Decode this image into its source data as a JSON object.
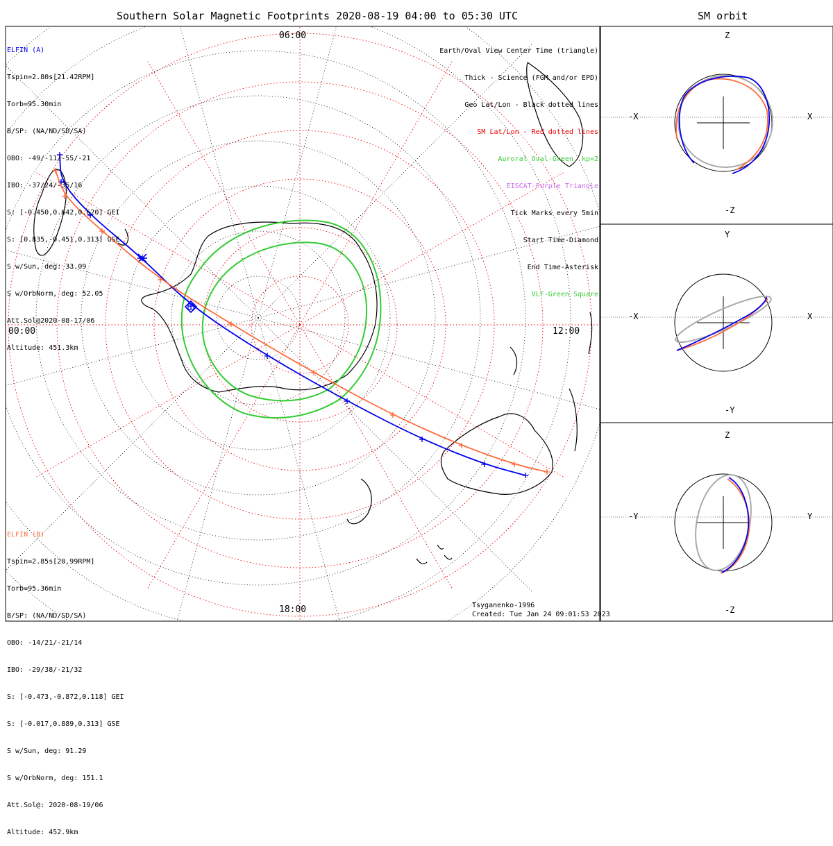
{
  "main_title": "Southern Solar Magnetic Footprints 2020-08-19 04:00 to 05:30 UTC",
  "side_title": "SM orbit",
  "mlt_labels": {
    "top": "06:00",
    "left": "00:00",
    "right": "12:00",
    "bottom": "18:00"
  },
  "elfin_a": {
    "title": "ELFIN (A)",
    "color": "#0000ee",
    "lines": [
      "Tspin=2.80s[21.42RPM]",
      "Torb=95.30min",
      "B/SP: (NA/ND/SD/SA)",
      "OBO: -49/-11/-55/-21",
      "IBO: -37/24/-35/16",
      "S: [-0.450,0.642,0.620] GEI",
      "S: [0.835,-0.451,0.313] GSE",
      "S w/Sun, deg: 33.09",
      "S w/OrbNorm, deg: 52.05",
      "Att.Sol@2020-08-17/06",
      "Altitude: 451.3km"
    ]
  },
  "elfin_b": {
    "title": "ELFIN (B)",
    "color": "#ff6a3c",
    "lines": [
      "Tspin=2.85s[20.99RPM]",
      "Torb=95.36min",
      "B/SP: (NA/ND/SD/SA)",
      "OBO: -14/21/-21/14",
      "IBO: -29/38/-21/32",
      "S: [-0.473,-0.872,0.118] GEI",
      "S: [-0.017,0.889,0.313] GSE",
      "S w/Sun, deg: 91.29",
      "S w/OrbNorm, deg: 151.1",
      "Att.Sol@: 2020-08-19/06",
      "Altitude: 452.9km"
    ]
  },
  "legend": [
    {
      "text": "Earth/Oval View Center Time (triangle)",
      "color": "#000000"
    },
    {
      "text": "Thick - Science (FGM and/or EPD)",
      "color": "#000000"
    },
    {
      "text": "Geo Lat/Lon - Black dotted lines",
      "color": "#000000"
    },
    {
      "text": "SM Lat/Lon - Red dotted lines",
      "color": "#ee0000"
    },
    {
      "text": "Auroral Oval-Green, kp=2",
      "color": "#33cc33"
    },
    {
      "text": "EISCAT-Purple Triangle",
      "color": "#cc66ee"
    },
    {
      "text": "Tick Marks every 5min",
      "color": "#000000"
    },
    {
      "text": "Start Time-Diamond",
      "color": "#000000"
    },
    {
      "text": "End Time-Asterisk",
      "color": "#000000"
    },
    {
      "text": "VLF-Green Square",
      "color": "#33cc33"
    }
  ],
  "footer": {
    "model": "Tsyganenko-1996",
    "created": "Created: Tue Jan 24 09:01:53 2023"
  },
  "orbit_panels": [
    {
      "top": "Z",
      "bottom": "-Z",
      "left": "-X",
      "right": "X"
    },
    {
      "top": "Y",
      "bottom": "-Y",
      "left": "-X",
      "right": "X"
    },
    {
      "top": "Z",
      "bottom": "-Z",
      "left": "-Y",
      "right": "Y"
    }
  ],
  "colors": {
    "red_grid": "#ee0000",
    "aurora": "#33cc33",
    "track_a": "#0000ee",
    "track_b": "#ff6a3c",
    "orbit_gray": "#aaaaaa"
  },
  "chart_data": {
    "type": "scatter",
    "projection": "polar (southern SM footprints)",
    "ticks_every_min": 5,
    "series": [
      {
        "name": "ELFIN (A)",
        "color": "#0000ee",
        "x": [
          86,
          88,
          130,
          205,
          275,
          385,
          500,
          608,
          698,
          757
        ],
        "y": [
          223,
          262,
          310,
          372,
          441,
          513,
          578,
          633,
          669,
          685
        ]
      },
      {
        "name": "ELFIN (B)",
        "color": "#ff6a3c",
        "x": [
          80,
          93,
          147,
          231,
          333,
          452,
          566,
          665,
          741,
          788
        ],
        "y": [
          246,
          283,
          333,
          403,
          467,
          537,
          598,
          642,
          669,
          680
        ]
      }
    ]
  }
}
